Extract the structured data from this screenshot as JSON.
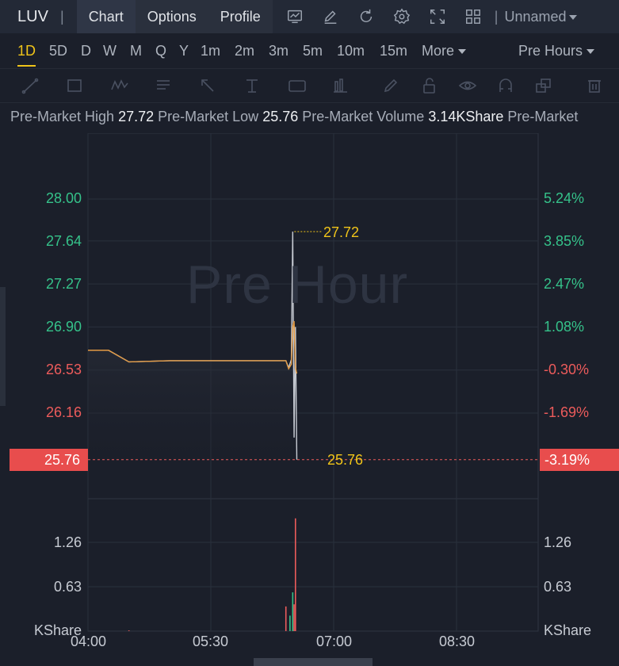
{
  "header": {
    "ticker": "LUV",
    "separator": "|",
    "tabs": [
      "Chart",
      "Options",
      "Profile"
    ],
    "icons": [
      "indicator-chart-icon",
      "draw-pen-icon",
      "refresh-icon",
      "settings-gear-icon",
      "fullscreen-icon",
      "layout-grid-icon"
    ],
    "layout_name": "Unnamed"
  },
  "periods": {
    "items": [
      "1D",
      "5D",
      "D",
      "W",
      "M",
      "Q",
      "Y",
      "1m",
      "2m",
      "3m",
      "5m",
      "10m",
      "15m"
    ],
    "active": "1D",
    "more_label": "More",
    "session_label": "Pre Hours"
  },
  "drawing_tools": [
    "trend-line-icon",
    "rectangle-icon",
    "pattern-icon",
    "text-note-icon",
    "arrow-icon",
    "measure-icon",
    "label-icon",
    "bar-marker-icon",
    "pencil-icon",
    "lock-icon",
    "eye-icon",
    "magnet-icon",
    "layers-icon",
    "trash-icon"
  ],
  "stats": {
    "high_label": "Pre-Market High",
    "high_value": "27.72",
    "low_label": "Pre-Market Low",
    "low_value": "25.76",
    "volume_label": "Pre-Market Volume",
    "volume_value": "3.14KShare",
    "trailing_label": "Pre-Market"
  },
  "chart_data": {
    "type": "line",
    "watermark": "Pre Hour",
    "price_axis_left": [
      "28.00",
      "27.64",
      "27.27",
      "26.90",
      "26.53",
      "26.16"
    ],
    "price_axis_right": [
      "5.24%",
      "3.85%",
      "2.47%",
      "1.08%",
      "-0.30%",
      "-1.69%"
    ],
    "current_price": "25.76",
    "current_change": "-3.19%",
    "high_marker": "27.72",
    "low_marker": "25.76",
    "volume_axis": [
      "1.26",
      "0.63"
    ],
    "volume_unit": "KShare",
    "x_ticks": [
      "04:00",
      "05:30",
      "07:00",
      "08:30"
    ],
    "colors": {
      "price_line": "#c7cbd3",
      "avg_line": "#e39a43",
      "up": "#35c28a",
      "down": "#ec5b5b",
      "marker": "#f0c419"
    },
    "series": [
      {
        "x": [
          "04:00",
          "04:15",
          "04:30",
          "05:00",
          "05:30",
          "06:00",
          "06:25",
          "06:27",
          "06:29",
          "06:30",
          "06:31",
          "06:32",
          "06:33"
        ],
        "values": [
          26.7,
          26.7,
          26.6,
          26.61,
          26.61,
          26.61,
          26.61,
          26.55,
          26.62,
          27.72,
          25.95,
          26.9,
          25.76
        ]
      },
      {
        "x": [
          "04:00",
          "04:15",
          "04:30",
          "05:00",
          "05:30",
          "06:00",
          "06:25",
          "06:27",
          "06:29",
          "06:30",
          "06:31",
          "06:32",
          "06:33"
        ],
        "values": [
          26.7,
          26.7,
          26.6,
          26.61,
          26.61,
          26.61,
          26.61,
          26.54,
          26.58,
          26.9,
          26.95,
          26.55,
          26.5
        ]
      }
    ],
    "volume": [
      {
        "x": "04:30",
        "value": 0.01,
        "color": "down"
      },
      {
        "x": "06:25",
        "value": 0.35,
        "color": "down"
      },
      {
        "x": "06:28",
        "value": 0.22,
        "color": "up"
      },
      {
        "x": "06:30",
        "value": 0.55,
        "color": "up"
      },
      {
        "x": "06:31",
        "value": 0.38,
        "color": "down"
      },
      {
        "x": "06:32",
        "value": 1.6,
        "color": "down"
      }
    ]
  }
}
